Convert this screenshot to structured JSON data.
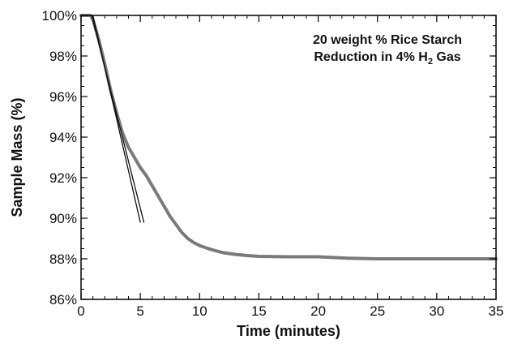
{
  "chart_data": {
    "type": "line",
    "xlabel": "Time (minutes)",
    "ylabel": "Sample Mass (%)",
    "xlim": [
      0,
      35
    ],
    "ylim": [
      86,
      100
    ],
    "x_ticks": [
      0,
      5,
      10,
      15,
      20,
      25,
      30,
      35
    ],
    "x_tick_labels": [
      "0",
      "5",
      "10",
      "15",
      "20",
      "25",
      "30",
      "35"
    ],
    "y_ticks": [
      86,
      88,
      90,
      92,
      94,
      96,
      98,
      100
    ],
    "y_tick_labels": [
      "86%",
      "88%",
      "90%",
      "92%",
      "94%",
      "96%",
      "98%",
      "100%"
    ],
    "grid": false,
    "annotation": {
      "line1": "20 weight % Rice Starch",
      "line2_prefix": "Reduction in 4% H",
      "line2_subscript": "2",
      "line2_suffix": " Gas"
    },
    "series": [
      {
        "color": "#7a7a7a",
        "x": [
          0,
          0.5,
          0.8,
          1.0,
          1.5,
          2.0,
          2.5,
          3.0,
          3.5,
          4.0,
          4.5,
          5.0,
          5.5,
          6.0,
          6.5,
          7.0,
          7.5,
          8.0,
          8.5,
          9.0,
          9.5,
          10.0,
          11.0,
          12.0,
          13.0,
          14.0,
          15.0,
          17.5,
          20.0,
          22.5,
          25.0,
          30.0,
          35.0
        ],
        "values": [
          100,
          100,
          100,
          99.8,
          98.8,
          97.6,
          96.3,
          95.2,
          94.2,
          93.5,
          93.0,
          92.5,
          92.1,
          91.6,
          91.1,
          90.6,
          90.1,
          89.7,
          89.3,
          89.0,
          88.8,
          88.65,
          88.45,
          88.3,
          88.22,
          88.16,
          88.12,
          88.1,
          88.1,
          88.03,
          88.0,
          88.0,
          88.0
        ]
      },
      {
        "color": "#111111",
        "x": [
          1.0,
          5.0
        ],
        "values": [
          100,
          89.8
        ]
      },
      {
        "color": "#111111",
        "x": [
          0.9,
          5.3
        ],
        "values": [
          100,
          89.8
        ]
      }
    ]
  }
}
